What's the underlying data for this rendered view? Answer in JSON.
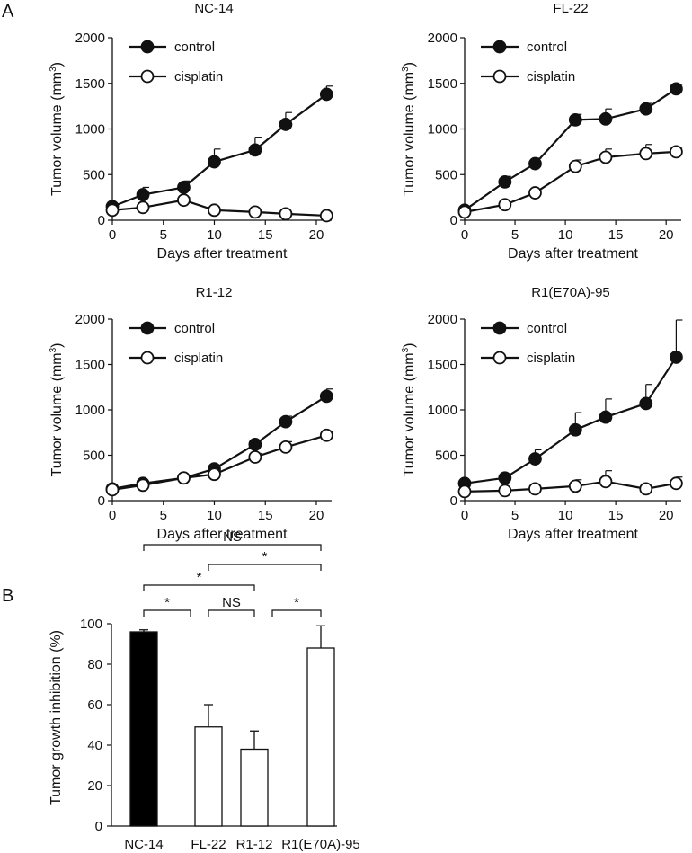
{
  "panel_labels": {
    "a": "A",
    "b": "B"
  },
  "chart_data": [
    {
      "type": "line",
      "title": "NC-14",
      "xlabel": "Days after treatment",
      "ylabel": "Tumor volume (mm",
      "ylabel_sup": "3",
      "ylabel_close": ")",
      "xlim": [
        0,
        21.5
      ],
      "ylim": [
        0,
        2000
      ],
      "xticks": [
        0,
        5,
        10,
        15,
        20
      ],
      "yticks": [
        0,
        500,
        1000,
        1500,
        2000
      ],
      "legend_position": "top-left",
      "series": [
        {
          "name": "control",
          "marker": "filled",
          "x": [
            0,
            3,
            7,
            10,
            14,
            17,
            21
          ],
          "y": [
            150,
            280,
            360,
            640,
            770,
            1050,
            1380
          ],
          "err": [
            30,
            80,
            70,
            140,
            140,
            130,
            90
          ]
        },
        {
          "name": "cisplatin",
          "marker": "open",
          "x": [
            0,
            3,
            7,
            10,
            14,
            17,
            21
          ],
          "y": [
            110,
            140,
            220,
            110,
            90,
            70,
            50
          ],
          "err": [
            20,
            20,
            30,
            10,
            10,
            10,
            5
          ]
        }
      ]
    },
    {
      "type": "line",
      "title": "FL-22",
      "xlabel": "Days after treatment",
      "ylabel": "Tumor volume (mm",
      "ylabel_sup": "3",
      "ylabel_close": ")",
      "xlim": [
        0,
        21.5
      ],
      "ylim": [
        0,
        2000
      ],
      "xticks": [
        0,
        5,
        10,
        15,
        20
      ],
      "yticks": [
        0,
        500,
        1000,
        1500,
        2000
      ],
      "legend_position": "top-left",
      "series": [
        {
          "name": "control",
          "marker": "filled",
          "x": [
            0,
            4,
            7,
            11,
            14,
            18,
            21
          ],
          "y": [
            110,
            420,
            620,
            1100,
            1110,
            1220,
            1440
          ],
          "err": [
            20,
            60,
            60,
            60,
            110,
            60,
            50
          ]
        },
        {
          "name": "cisplatin",
          "marker": "open",
          "x": [
            0,
            4,
            7,
            11,
            14,
            18,
            21
          ],
          "y": [
            90,
            170,
            300,
            590,
            690,
            730,
            750
          ],
          "err": [
            10,
            20,
            30,
            70,
            90,
            100,
            50
          ]
        }
      ]
    },
    {
      "type": "line",
      "title": "R1-12",
      "xlabel": "Days after treatment",
      "ylabel": "Tumor volume (mm",
      "ylabel_sup": "3",
      "ylabel_close": ")",
      "xlim": [
        0,
        21.5
      ],
      "ylim": [
        0,
        2000
      ],
      "xticks": [
        0,
        5,
        10,
        15,
        20
      ],
      "yticks": [
        0,
        500,
        1000,
        1500,
        2000
      ],
      "legend_position": "top-left",
      "series": [
        {
          "name": "control",
          "marker": "filled",
          "x": [
            0,
            3,
            7,
            10,
            14,
            17,
            21
          ],
          "y": [
            130,
            190,
            250,
            350,
            620,
            870,
            1150
          ],
          "err": [
            20,
            20,
            30,
            30,
            40,
            60,
            80
          ]
        },
        {
          "name": "cisplatin",
          "marker": "open",
          "x": [
            0,
            3,
            7,
            10,
            14,
            17,
            21
          ],
          "y": [
            120,
            170,
            250,
            290,
            480,
            590,
            720
          ],
          "err": [
            15,
            20,
            30,
            30,
            40,
            60,
            40
          ]
        }
      ]
    },
    {
      "type": "line",
      "title": "R1(E70A)-95",
      "xlabel": "Days after treatment",
      "ylabel": "Tumor volume (mm",
      "ylabel_sup": "3",
      "ylabel_close": ")",
      "xlim": [
        0,
        21.5
      ],
      "ylim": [
        0,
        2000
      ],
      "xticks": [
        0,
        5,
        10,
        15,
        20
      ],
      "yticks": [
        0,
        500,
        1000,
        1500,
        2000
      ],
      "legend_position": "top-left",
      "series": [
        {
          "name": "control",
          "marker": "filled",
          "x": [
            0,
            4,
            7,
            11,
            14,
            18,
            21
          ],
          "y": [
            190,
            250,
            460,
            780,
            920,
            1070,
            1580
          ],
          "err": [
            20,
            30,
            100,
            190,
            200,
            210,
            410
          ]
        },
        {
          "name": "cisplatin",
          "marker": "open",
          "x": [
            0,
            4,
            7,
            11,
            14,
            18,
            21
          ],
          "y": [
            100,
            110,
            130,
            160,
            210,
            130,
            190
          ],
          "err": [
            15,
            20,
            20,
            70,
            120,
            20,
            70
          ]
        }
      ]
    },
    {
      "type": "bar",
      "title": "",
      "xlabel": "",
      "ylabel": "Tumor growth inhibition (%)",
      "ylim": [
        0,
        100
      ],
      "yticks": [
        0,
        20,
        40,
        60,
        80,
        100
      ],
      "categories": [
        "NC-14",
        "FL-22",
        "R1-12",
        "R1(E70A)-95"
      ],
      "values": [
        96,
        49,
        38,
        88
      ],
      "err": [
        1,
        11,
        9,
        11
      ],
      "fill": [
        "#000000",
        "#ffffff",
        "#ffffff",
        "#ffffff"
      ],
      "significance": [
        {
          "from": 0,
          "to": 1,
          "label": "*",
          "level": 0
        },
        {
          "from": 1,
          "to": 2,
          "label": "NS",
          "level": 0
        },
        {
          "from": 2,
          "to": 3,
          "label": "*",
          "level": 0
        },
        {
          "from": 0,
          "to": 2,
          "label": "*",
          "level": 1
        },
        {
          "from": 1,
          "to": 3,
          "label": "*",
          "level": 2
        },
        {
          "from": 0,
          "to": 3,
          "label": "NS",
          "level": 3
        }
      ]
    }
  ]
}
